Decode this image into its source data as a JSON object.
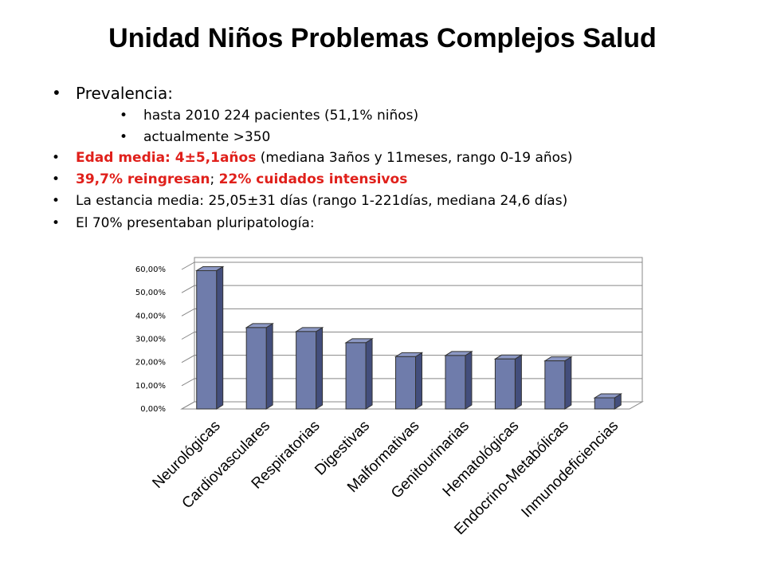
{
  "title": "Unidad Niños Problemas Complejos Salud",
  "bullets": [
    {
      "level": 1,
      "segments": [
        {
          "text": "Prevalencia:"
        }
      ]
    },
    {
      "level": 2,
      "segments": [
        {
          "text": "hasta 2010  224 pacientes  (51,1% niños)"
        }
      ]
    },
    {
      "level": 2,
      "segments": [
        {
          "text": "actualmente >350"
        }
      ]
    },
    {
      "level": 1,
      "segments": [
        {
          "text": "Edad media:  4±5,1años",
          "emphasis": true
        },
        {
          "text": " (mediana 3años y 11meses, rango 0-19 años)"
        }
      ]
    },
    {
      "level": 1,
      "segments": [
        {
          "text": "39,7% reingresan",
          "emphasis": true
        },
        {
          "text": "; "
        },
        {
          "text": "22% cuidados intensivos",
          "emphasis": true
        }
      ]
    },
    {
      "level": 1,
      "segments": [
        {
          "text": "La estancia media:  25,05±31 días (rango 1-221días, mediana 24,6 días)"
        }
      ]
    },
    {
      "level": 1,
      "segments": [
        {
          "text": "El 70% presentaban pluripatología:"
        }
      ]
    }
  ],
  "chart_data": {
    "type": "bar3d",
    "categories": [
      "Neurológicas",
      "Cardiovasculares",
      "Respiratorias",
      "Digestivas",
      "Malformativas",
      "Genitourinarias",
      "Hematológicas",
      "Endocrino-Metabólicas",
      "Inmunodeficiencias"
    ],
    "values": [
      59.5,
      35,
      33.3,
      28.5,
      22.5,
      23,
      21.5,
      20.7,
      4.8
    ],
    "color": "#6f7cab",
    "ylim": [
      0,
      60
    ],
    "yticks": [
      {
        "value": 0,
        "label": "0,00%"
      },
      {
        "value": 10,
        "label": "10,00%"
      },
      {
        "value": 20,
        "label": "20,00%"
      },
      {
        "value": 30,
        "label": "30,00%"
      },
      {
        "value": 40,
        "label": "40,00%"
      },
      {
        "value": 50,
        "label": "50,00%"
      },
      {
        "value": 60,
        "label": "60,00%"
      }
    ],
    "grid": true
  }
}
